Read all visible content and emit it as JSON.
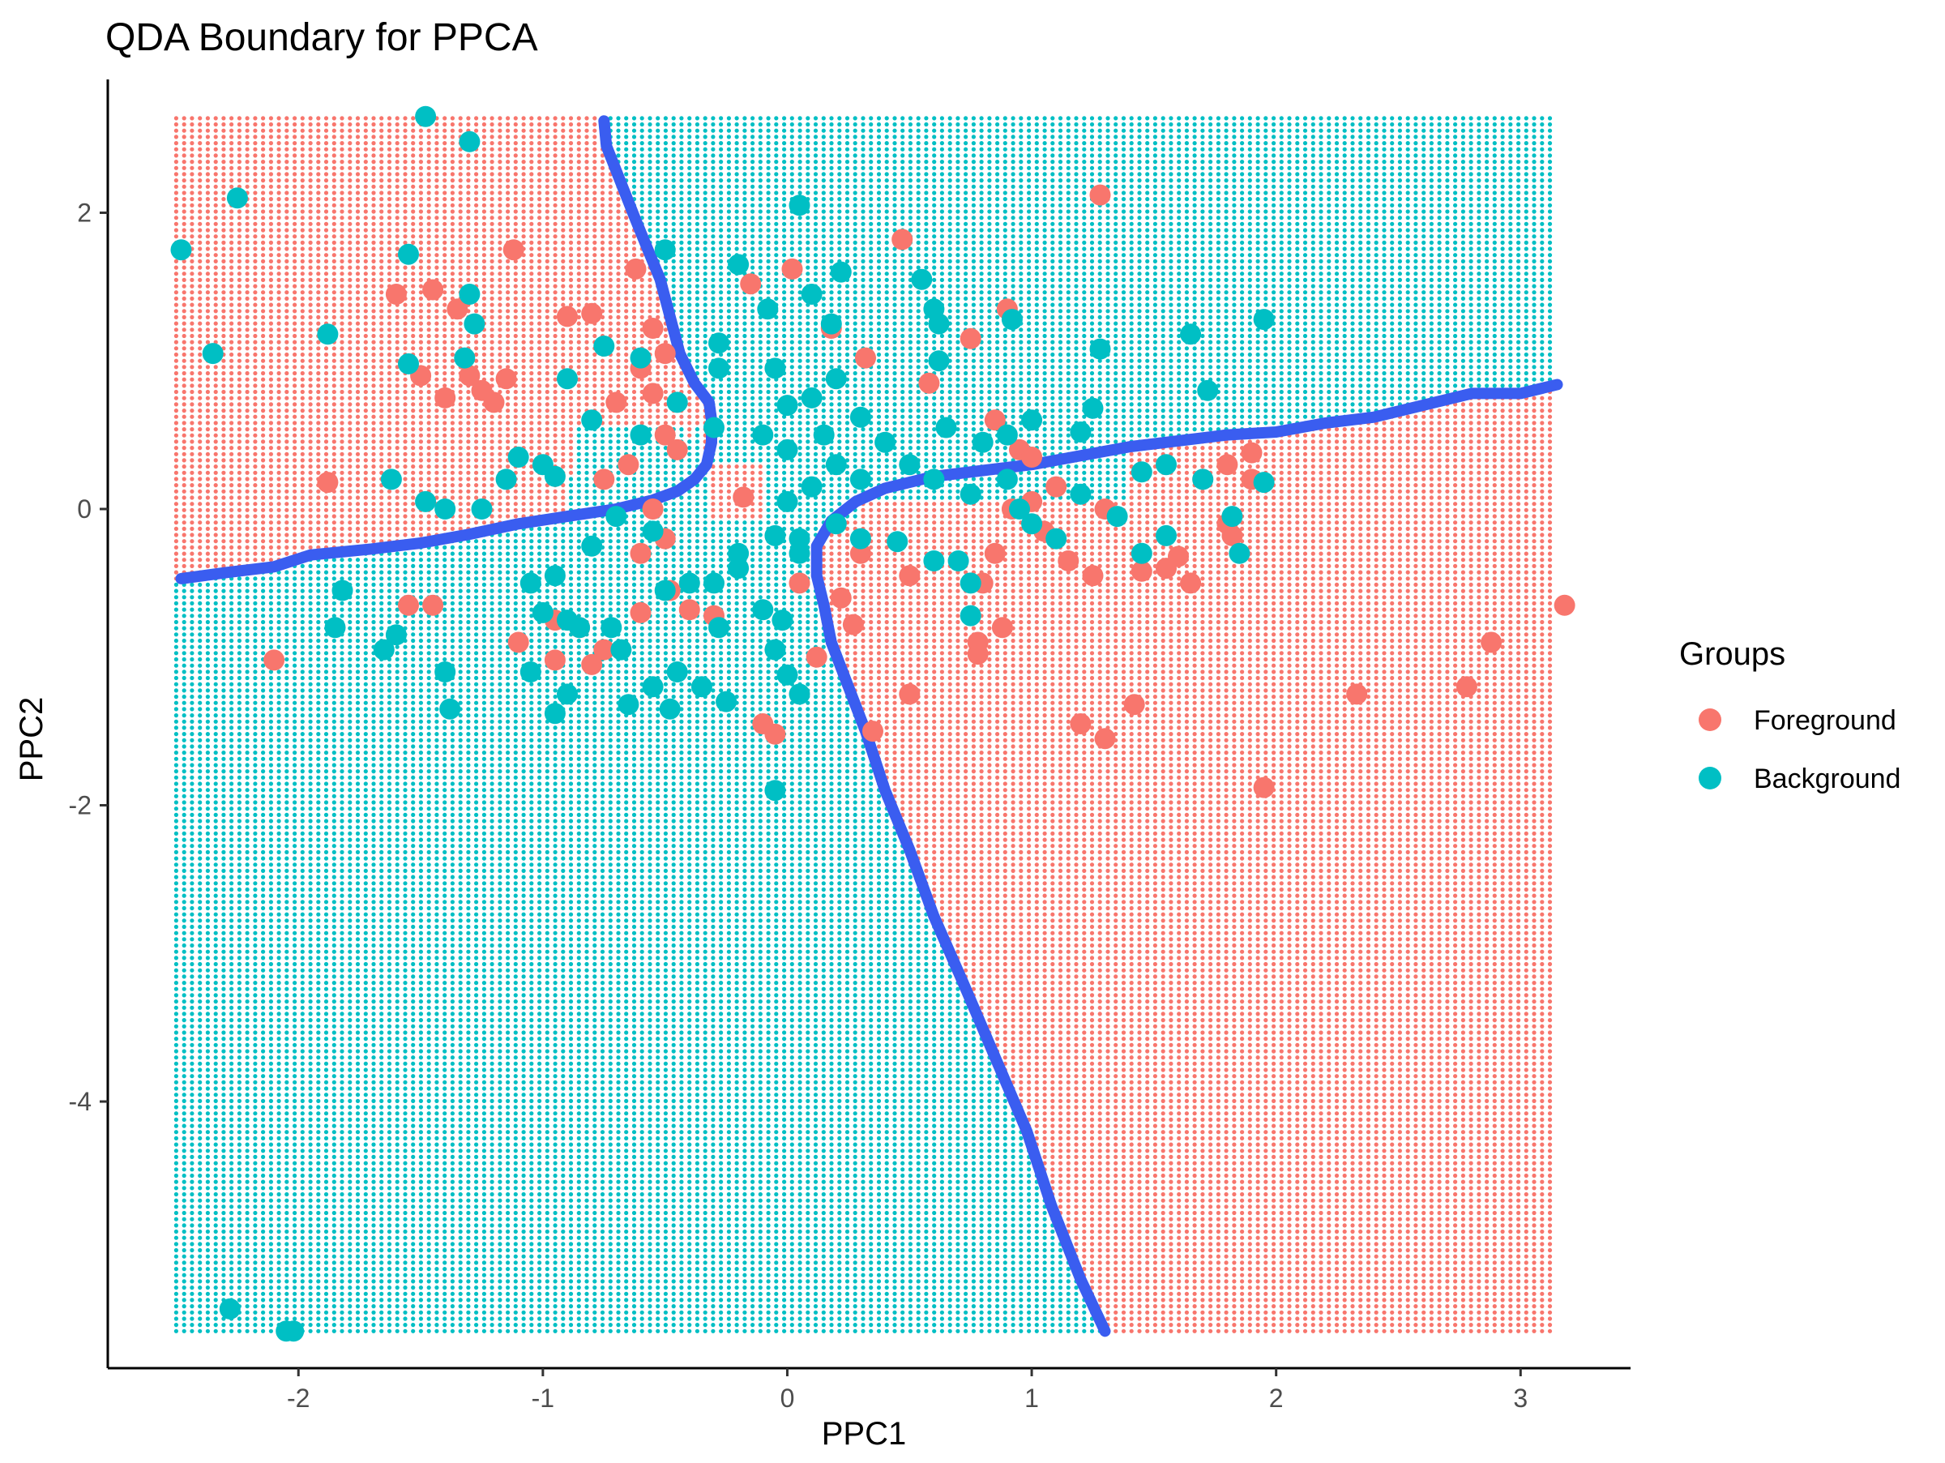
{
  "chart_data": {
    "type": "scatter",
    "title": "QDA Boundary for PPCA",
    "xlabel": "PPC1",
    "ylabel": "PPC2",
    "xlim": [
      -2.78,
      3.45
    ],
    "ylim": [
      -5.8,
      2.9
    ],
    "x_ticks": [
      -2,
      -1,
      0,
      1,
      2,
      3
    ],
    "y_ticks": [
      -4,
      -2,
      0,
      2
    ],
    "grid": false,
    "legend": {
      "title": "Groups",
      "position": "right"
    },
    "colors": {
      "Foreground": "#F8766D",
      "Background": "#00BFC4",
      "boundary": "#3A5DF0"
    },
    "region_grid": {
      "x_range": [
        -2.5,
        3.15
      ],
      "y_range": [
        -5.55,
        2.65
      ],
      "step": 0.0323
    },
    "boundary": [
      {
        "name": "lower-boundary",
        "points": [
          [
            -2.48,
            -0.47
          ],
          [
            -2.3,
            -0.43
          ],
          [
            -2.1,
            -0.39
          ],
          [
            -1.95,
            -0.31
          ],
          [
            -1.7,
            -0.27
          ],
          [
            -1.5,
            -0.23
          ],
          [
            -1.3,
            -0.17
          ],
          [
            -1.1,
            -0.1
          ],
          [
            -0.9,
            -0.05
          ],
          [
            -0.7,
            0.0
          ],
          [
            -0.55,
            0.06
          ],
          [
            -0.45,
            0.12
          ],
          [
            -0.38,
            0.2
          ],
          [
            -0.33,
            0.3
          ],
          [
            -0.31,
            0.45
          ],
          [
            -0.31,
            0.6
          ],
          [
            -0.32,
            0.72
          ],
          [
            -0.38,
            0.85
          ],
          [
            -0.44,
            1.05
          ],
          [
            -0.48,
            1.3
          ],
          [
            -0.52,
            1.55
          ],
          [
            -0.57,
            1.75
          ],
          [
            -0.62,
            1.95
          ],
          [
            -0.68,
            2.2
          ],
          [
            -0.74,
            2.45
          ],
          [
            -0.75,
            2.62
          ]
        ]
      },
      {
        "name": "upper-boundary",
        "points": [
          [
            3.15,
            0.84
          ],
          [
            3.0,
            0.78
          ],
          [
            2.8,
            0.78
          ],
          [
            2.6,
            0.7
          ],
          [
            2.4,
            0.62
          ],
          [
            2.2,
            0.58
          ],
          [
            2.0,
            0.52
          ],
          [
            1.8,
            0.5
          ],
          [
            1.6,
            0.46
          ],
          [
            1.4,
            0.42
          ],
          [
            1.2,
            0.36
          ],
          [
            1.0,
            0.3
          ],
          [
            0.8,
            0.26
          ],
          [
            0.6,
            0.22
          ],
          [
            0.4,
            0.14
          ],
          [
            0.28,
            0.05
          ],
          [
            0.18,
            -0.08
          ],
          [
            0.12,
            -0.25
          ],
          [
            0.12,
            -0.45
          ],
          [
            0.15,
            -0.65
          ],
          [
            0.18,
            -0.9
          ],
          [
            0.25,
            -1.2
          ],
          [
            0.32,
            -1.5
          ],
          [
            0.4,
            -1.9
          ],
          [
            0.5,
            -2.3
          ],
          [
            0.6,
            -2.75
          ],
          [
            0.72,
            -3.2
          ],
          [
            0.85,
            -3.7
          ],
          [
            0.98,
            -4.2
          ],
          [
            1.08,
            -4.7
          ],
          [
            1.2,
            -5.2
          ],
          [
            1.3,
            -5.55
          ]
        ]
      }
    ],
    "series": [
      {
        "name": "Foreground",
        "points": [
          [
            -1.12,
            1.75
          ],
          [
            -1.6,
            1.45
          ],
          [
            -1.45,
            1.48
          ],
          [
            -1.35,
            1.35
          ],
          [
            -1.5,
            0.9
          ],
          [
            -1.4,
            0.75
          ],
          [
            -1.3,
            0.9
          ],
          [
            -1.25,
            0.8
          ],
          [
            -1.15,
            0.88
          ],
          [
            -1.2,
            0.72
          ],
          [
            -0.9,
            1.3
          ],
          [
            -0.8,
            1.32
          ],
          [
            -1.88,
            0.18
          ],
          [
            -0.62,
            1.62
          ],
          [
            -0.55,
            1.22
          ],
          [
            -0.5,
            1.05
          ],
          [
            -0.6,
            0.95
          ],
          [
            -0.55,
            0.78
          ],
          [
            -0.7,
            0.72
          ],
          [
            -0.5,
            0.5
          ],
          [
            -0.45,
            0.4
          ],
          [
            -0.65,
            0.3
          ],
          [
            -0.75,
            0.2
          ],
          [
            -0.55,
            0.0
          ],
          [
            -0.5,
            -0.2
          ],
          [
            -0.6,
            -0.3
          ],
          [
            -0.48,
            -0.55
          ],
          [
            -0.4,
            -0.68
          ],
          [
            -0.3,
            -0.72
          ],
          [
            -0.18,
            0.08
          ],
          [
            -0.15,
            1.52
          ],
          [
            0.02,
            1.62
          ],
          [
            0.18,
            1.22
          ],
          [
            0.32,
            1.02
          ],
          [
            0.47,
            1.82
          ],
          [
            0.58,
            0.85
          ],
          [
            0.75,
            1.15
          ],
          [
            0.9,
            1.35
          ],
          [
            0.85,
            0.6
          ],
          [
            0.95,
            0.4
          ],
          [
            1.0,
            0.35
          ],
          [
            0.92,
            0.0
          ],
          [
            1.0,
            0.05
          ],
          [
            1.1,
            0.15
          ],
          [
            1.28,
            2.12
          ],
          [
            1.3,
            0.0
          ],
          [
            1.05,
            -0.15
          ],
          [
            1.15,
            -0.35
          ],
          [
            1.25,
            -0.45
          ],
          [
            0.85,
            -0.3
          ],
          [
            0.8,
            -0.5
          ],
          [
            0.78,
            -0.9
          ],
          [
            0.88,
            -0.8
          ],
          [
            0.78,
            -0.98
          ],
          [
            0.5,
            -0.45
          ],
          [
            0.5,
            -1.25
          ],
          [
            0.27,
            -0.78
          ],
          [
            0.22,
            -0.6
          ],
          [
            1.45,
            -0.42
          ],
          [
            1.55,
            -0.4
          ],
          [
            1.6,
            -0.32
          ],
          [
            1.65,
            -0.5
          ],
          [
            1.8,
            -0.1
          ],
          [
            1.9,
            0.38
          ],
          [
            1.7,
            0.2
          ],
          [
            1.9,
            0.2
          ],
          [
            1.8,
            0.3
          ],
          [
            1.82,
            -0.18
          ],
          [
            1.42,
            -1.32
          ],
          [
            1.2,
            -1.45
          ],
          [
            1.3,
            -1.55
          ],
          [
            1.95,
            -1.88
          ],
          [
            2.33,
            -1.25
          ],
          [
            2.78,
            -1.2
          ],
          [
            2.88,
            -0.9
          ],
          [
            3.18,
            -0.65
          ],
          [
            -2.1,
            -1.02
          ],
          [
            -1.55,
            -0.65
          ],
          [
            -1.45,
            -0.65
          ],
          [
            -1.1,
            -0.9
          ],
          [
            -0.95,
            -0.75
          ],
          [
            -0.85,
            -0.8
          ],
          [
            -0.95,
            -1.02
          ],
          [
            -0.8,
            -1.05
          ],
          [
            -0.75,
            -0.95
          ],
          [
            -0.6,
            -0.7
          ],
          [
            -0.1,
            -1.45
          ],
          [
            -0.05,
            -1.52
          ],
          [
            0.05,
            -0.5
          ],
          [
            0.12,
            -1.0
          ],
          [
            0.35,
            -1.5
          ],
          [
            0.3,
            -0.3
          ]
        ]
      },
      {
        "name": "Background",
        "points": [
          [
            -1.48,
            2.65
          ],
          [
            -1.3,
            2.48
          ],
          [
            -2.25,
            2.1
          ],
          [
            -2.48,
            1.75
          ],
          [
            -1.55,
            1.72
          ],
          [
            -2.35,
            1.05
          ],
          [
            -1.88,
            1.18
          ],
          [
            -1.3,
            1.45
          ],
          [
            -1.28,
            1.25
          ],
          [
            -1.32,
            1.02
          ],
          [
            -1.55,
            0.98
          ],
          [
            -0.75,
            1.1
          ],
          [
            -0.5,
            1.75
          ],
          [
            -0.2,
            1.65
          ],
          [
            0.05,
            2.05
          ],
          [
            0.1,
            1.45
          ],
          [
            0.22,
            1.6
          ],
          [
            0.18,
            1.25
          ],
          [
            -0.28,
            1.12
          ],
          [
            -0.28,
            0.95
          ],
          [
            -0.08,
            1.35
          ],
          [
            -0.05,
            0.95
          ],
          [
            0.0,
            0.7
          ],
          [
            0.1,
            0.75
          ],
          [
            0.2,
            0.88
          ],
          [
            0.3,
            0.62
          ],
          [
            0.55,
            1.55
          ],
          [
            0.6,
            1.35
          ],
          [
            0.62,
            1.25
          ],
          [
            0.62,
            1.0
          ],
          [
            0.65,
            0.55
          ],
          [
            0.8,
            0.45
          ],
          [
            0.92,
            1.28
          ],
          [
            0.9,
            0.5
          ],
          [
            1.0,
            0.6
          ],
          [
            1.2,
            0.52
          ],
          [
            1.25,
            0.68
          ],
          [
            1.28,
            1.08
          ],
          [
            1.65,
            1.18
          ],
          [
            1.72,
            0.8
          ],
          [
            1.95,
            1.28
          ],
          [
            -0.9,
            0.88
          ],
          [
            -0.8,
            0.6
          ],
          [
            -0.6,
            0.5
          ],
          [
            -0.6,
            1.02
          ],
          [
            -0.45,
            0.72
          ],
          [
            -0.3,
            0.55
          ],
          [
            -0.1,
            0.5
          ],
          [
            0.0,
            0.4
          ],
          [
            0.15,
            0.5
          ],
          [
            0.2,
            0.3
          ],
          [
            0.3,
            0.2
          ],
          [
            0.4,
            0.45
          ],
          [
            0.5,
            0.3
          ],
          [
            0.6,
            0.2
          ],
          [
            0.75,
            0.1
          ],
          [
            0.9,
            0.2
          ],
          [
            0.95,
            0.0
          ],
          [
            1.0,
            -0.1
          ],
          [
            1.1,
            -0.2
          ],
          [
            1.2,
            0.1
          ],
          [
            1.35,
            -0.05
          ],
          [
            1.45,
            0.25
          ],
          [
            1.55,
            0.3
          ],
          [
            1.7,
            0.2
          ],
          [
            1.95,
            0.18
          ],
          [
            1.82,
            -0.05
          ],
          [
            1.45,
            -0.3
          ],
          [
            1.55,
            -0.18
          ],
          [
            1.85,
            -0.3
          ],
          [
            0.7,
            -0.35
          ],
          [
            0.75,
            -0.5
          ],
          [
            0.75,
            -0.72
          ],
          [
            0.6,
            -0.35
          ],
          [
            0.45,
            -0.22
          ],
          [
            0.3,
            -0.2
          ],
          [
            0.2,
            -0.1
          ],
          [
            0.05,
            -0.3
          ],
          [
            -0.05,
            -0.18
          ],
          [
            -0.2,
            -0.4
          ],
          [
            -0.3,
            -0.5
          ],
          [
            -0.4,
            -0.5
          ],
          [
            -0.5,
            -0.55
          ],
          [
            -0.55,
            -0.15
          ],
          [
            -0.7,
            -0.05
          ],
          [
            -0.8,
            -0.25
          ],
          [
            -0.95,
            -0.45
          ],
          [
            -1.05,
            -0.5
          ],
          [
            -1.15,
            0.2
          ],
          [
            -1.1,
            0.35
          ],
          [
            -1.0,
            0.3
          ],
          [
            -0.95,
            0.22
          ],
          [
            -1.25,
            0.0
          ],
          [
            -1.4,
            0.0
          ],
          [
            -1.48,
            0.05
          ],
          [
            -1.62,
            0.2
          ],
          [
            -1.0,
            -0.7
          ],
          [
            -0.9,
            -0.75
          ],
          [
            -0.85,
            -0.8
          ],
          [
            -0.72,
            -0.8
          ],
          [
            -0.68,
            -0.95
          ],
          [
            -0.55,
            -1.2
          ],
          [
            -0.48,
            -1.35
          ],
          [
            -0.45,
            -1.1
          ],
          [
            -0.35,
            -1.2
          ],
          [
            -0.25,
            -1.3
          ],
          [
            -0.28,
            -0.8
          ],
          [
            -0.1,
            -0.68
          ],
          [
            -0.05,
            -0.95
          ],
          [
            0.0,
            -1.12
          ],
          [
            0.05,
            -1.25
          ],
          [
            -0.05,
            -1.9
          ],
          [
            -0.2,
            -0.3
          ],
          [
            0.0,
            0.05
          ],
          [
            0.05,
            -0.2
          ],
          [
            0.1,
            0.15
          ],
          [
            -1.65,
            -0.95
          ],
          [
            -1.6,
            -0.85
          ],
          [
            -1.85,
            -0.8
          ],
          [
            -1.82,
            -0.55
          ],
          [
            -1.4,
            -1.1
          ],
          [
            -1.38,
            -1.35
          ],
          [
            -1.05,
            -1.1
          ],
          [
            -0.9,
            -1.25
          ],
          [
            -0.95,
            -1.38
          ],
          [
            -0.65,
            -1.32
          ],
          [
            -0.02,
            -0.75
          ],
          [
            -2.28,
            -5.4
          ],
          [
            -2.05,
            -5.55
          ],
          [
            -2.02,
            -5.55
          ]
        ]
      }
    ]
  }
}
